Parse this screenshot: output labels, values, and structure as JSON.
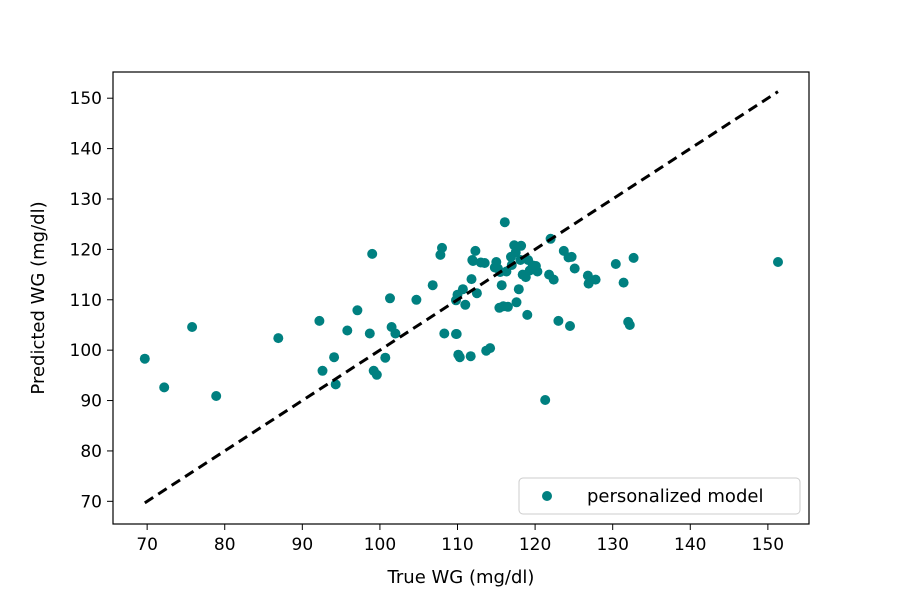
{
  "chart_data": {
    "type": "scatter",
    "title": "",
    "xlabel": "True WG (mg/dl)",
    "ylabel": "Predicted WG (mg/dl)",
    "xlim": [
      65.6,
      155.3
    ],
    "ylim": [
      65.5,
      155.2
    ],
    "xticks": [
      70,
      80,
      90,
      100,
      110,
      120,
      130,
      140,
      150
    ],
    "yticks": [
      70,
      80,
      90,
      100,
      110,
      120,
      130,
      140,
      150
    ],
    "grid": false,
    "legend_position": "lower-right",
    "series": [
      {
        "name": "personalized model",
        "color": "#008080",
        "marker": "circle",
        "x": [
          69.7,
          72.2,
          75.8,
          78.9,
          86.9,
          92.2,
          92.6,
          94.1,
          94.3,
          95.8,
          97.1,
          98.7,
          99.0,
          99.2,
          99.6,
          100.7,
          101.3,
          101.5,
          102.0,
          104.7,
          106.8,
          107.8,
          108.0,
          108.3,
          109.8,
          109.8,
          109.9,
          110.0,
          110.1,
          110.3,
          110.7,
          111.0,
          111.7,
          111.8,
          111.9,
          112.0,
          112.3,
          112.5,
          113.0,
          113.5,
          113.7,
          114.2,
          114.8,
          115.0,
          115.2,
          115.4,
          115.5,
          115.7,
          115.9,
          116.1,
          116.3,
          116.5,
          116.9,
          117.0,
          117.3,
          117.5,
          117.6,
          117.9,
          118.1,
          118.2,
          118.4,
          118.8,
          119.0,
          119.1,
          119.3,
          119.7,
          120.1,
          120.3,
          121.3,
          121.8,
          122.0,
          122.4,
          123.0,
          123.7,
          124.3,
          124.5,
          124.7,
          125.1,
          126.8,
          126.9,
          127.8,
          130.4,
          131.4,
          132.0,
          132.2,
          132.7,
          151.3
        ],
        "y": [
          98.3,
          92.6,
          104.6,
          90.9,
          102.4,
          105.8,
          95.9,
          98.6,
          93.2,
          103.9,
          107.9,
          103.3,
          119.1,
          95.9,
          95.1,
          98.5,
          110.3,
          104.6,
          103.3,
          110.0,
          112.9,
          118.9,
          120.3,
          103.3,
          109.9,
          103.2,
          103.2,
          111.0,
          99.1,
          98.6,
          112.1,
          109.0,
          98.8,
          114.1,
          117.9,
          117.7,
          119.7,
          111.3,
          117.4,
          117.3,
          99.9,
          100.4,
          116.4,
          117.5,
          116.2,
          108.4,
          115.5,
          112.9,
          108.7,
          125.4,
          115.6,
          108.6,
          118.5,
          116.9,
          120.8,
          119.4,
          109.5,
          112.1,
          117.9,
          120.7,
          115.0,
          114.5,
          107.0,
          117.9,
          115.8,
          116.8,
          116.7,
          115.6,
          90.1,
          115.0,
          122.1,
          114.0,
          105.8,
          119.7,
          118.4,
          104.8,
          118.5,
          116.2,
          114.8,
          113.2,
          114.0,
          117.1,
          113.4,
          105.6,
          105.0,
          118.3,
          117.5
        ]
      },
      {
        "name": "",
        "type": "line",
        "style": "dashed",
        "color": "#000000",
        "x": [
          69.7,
          151.3
        ],
        "y": [
          69.7,
          151.3
        ]
      }
    ]
  }
}
